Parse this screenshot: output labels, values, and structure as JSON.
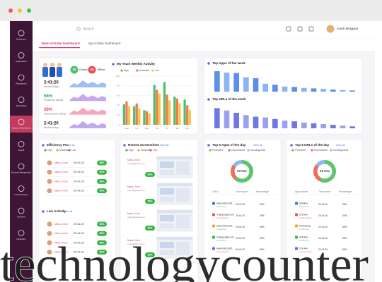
{
  "sidebar": {
    "items": [
      "Dashboard",
      "Organization",
      "Recruitment",
      "Onboarding",
      "Employee Monitoring",
      "Payroll",
      "Expense Management",
      "Leave Manager",
      "Workflow",
      "Integration"
    ]
  },
  "header": {
    "search": "Search",
    "user_name": "Anish Bhagwat"
  },
  "tabs": [
    "Team Activity Dashboard",
    "My Activity Dashboard"
  ],
  "team_overview": {
    "online": {
      "count": 28,
      "label": "Online"
    },
    "offline": {
      "count": 15,
      "label": "Offline"
    },
    "stats": [
      {
        "value": "2:41:20",
        "label": "Worked today"
      },
      {
        "value": "56%",
        "label": "Productive activity"
      },
      {
        "value": "28%",
        "label": "Unproductive activity"
      },
      {
        "value": "2:41:20",
        "label": "Worked today"
      }
    ]
  },
  "chart_data": [
    {
      "type": "bar",
      "title": "My Team Weekly Activity",
      "categories": [
        "Mon",
        "Tue",
        "Wed",
        "Thu",
        "Fri",
        "Sat",
        "Sun"
      ],
      "series": [
        {
          "name": "High",
          "color": "#4cbf6b",
          "values": [
            42,
            38,
            30,
            82,
            88,
            58,
            52
          ]
        },
        {
          "name": "Moderate",
          "color": "#f07a4a",
          "values": [
            48,
            44,
            28,
            72,
            62,
            54,
            40
          ]
        },
        {
          "name": "Low",
          "color": "#f5c542",
          "values": [
            38,
            34,
            24,
            64,
            50,
            44,
            30
          ]
        }
      ],
      "ylim": [
        0,
        100
      ],
      "yticks": [
        0,
        20,
        40,
        60,
        80,
        100
      ],
      "grid": true
    },
    {
      "type": "bar",
      "title": "Top Apps of the week",
      "categories": [
        null,
        null,
        null,
        null,
        null,
        null,
        null,
        null,
        null,
        null,
        null,
        null,
        null,
        null,
        null
      ],
      "values": [
        88,
        82,
        80,
        62,
        58,
        34,
        30,
        22,
        20,
        16,
        14,
        12,
        9,
        7,
        5
      ],
      "colors": [
        "#5b8fe8",
        "#8ab4f2",
        "#5b8fe8",
        "#8ab4f2",
        "#5b8fe8",
        "#8ab4f2",
        "#5b8fe8",
        "#8ab4f2",
        "#5b8fe8",
        "#8ab4f2",
        "#5b8fe8",
        "#8ab4f2",
        "#5b8fe8",
        "#8ab4f2",
        "#5b8fe8"
      ],
      "ylim": [
        0,
        100
      ]
    },
    {
      "type": "bar",
      "title": "Top URLs of the week",
      "categories": [
        null,
        null,
        null,
        null,
        null,
        null,
        null,
        null,
        null,
        null,
        null,
        null,
        null,
        null,
        null
      ],
      "values": [
        52,
        46,
        40,
        34,
        30,
        28,
        24,
        20,
        18,
        15,
        13,
        11,
        9,
        7,
        5
      ],
      "colors": [
        "#6f78e0",
        "#9aa2ee",
        "#6f78e0",
        "#9aa2ee",
        "#6f78e0",
        "#9aa2ee",
        "#6f78e0",
        "#9aa2ee",
        "#6f78e0",
        "#9aa2ee",
        "#6f78e0",
        "#9aa2ee",
        "#6f78e0",
        "#9aa2ee",
        "#6f78e0"
      ],
      "ylim": [
        0,
        60
      ]
    },
    {
      "type": "pie",
      "title": "Top 5 Apps of the day",
      "view_all": "View all",
      "center_label": "23 Hrs",
      "categories": [
        "Productive",
        "Unproductive",
        "Uncategorized"
      ],
      "values": [
        62,
        23,
        15
      ],
      "colors": [
        "#5cc46a",
        "#ef6b5b",
        "#8fb6f2"
      ]
    },
    {
      "type": "pie",
      "title": "Top 5 URLs of the day",
      "view_all": "View all",
      "center_label": "23 Hrs",
      "categories": [
        "Productive",
        "Unproductive",
        "Uncategorized"
      ],
      "values": [
        58,
        27,
        15
      ],
      "colors": [
        "#5cc46a",
        "#ef6b5b",
        "#8fb6f2"
      ]
    }
  ],
  "efficiency": {
    "title": "Efficiency Pro",
    "view_all": "View all",
    "legend": [
      {
        "label": "High",
        "color": "#39b54a"
      },
      {
        "label": "Moderate",
        "color": "#f5a623"
      },
      {
        "label": "Low",
        "color": "#e8505b"
      }
    ],
    "rows": [
      {
        "name": "Mano John",
        "time": "20:41:20",
        "score": "90%"
      },
      {
        "name": "Mano John",
        "time": "20:41:20",
        "score": "60%"
      },
      {
        "name": "Mano John",
        "time": "20:41:20",
        "score": "60%"
      },
      {
        "name": "Mano John",
        "time": "20:41:20",
        "score": "50%"
      }
    ]
  },
  "live_activity": {
    "title": "Live Activity",
    "view_all": "View all",
    "rows": [
      {
        "name": "Mano John",
        "time": "20:41:20",
        "score": "90%"
      },
      {
        "name": "Mano John",
        "time": "20:41:20",
        "score": "60%"
      },
      {
        "name": "Mano John",
        "time": "20:41:20",
        "score": "60%"
      },
      {
        "name": "Mano John",
        "time": "20:41:20",
        "score": "50%"
      }
    ]
  },
  "screenshots": {
    "title": "Recent Screenshots",
    "view_all": "View all",
    "legend": [
      {
        "label": "High",
        "color": "#39b54a"
      },
      {
        "label": "Moderate",
        "color": "#f5a623"
      },
      {
        "label": "Low",
        "color": "#e8505b"
      }
    ],
    "items": [
      {
        "name": "Mano John",
        "email": "mano@gmail.com",
        "score": "60%"
      },
      {
        "name": "Mano John",
        "email": "mano@gmail.com",
        "score": "60%"
      },
      {
        "name": "Mano John",
        "email": "mano@gmail.com",
        "score": "60%"
      },
      {
        "name": "Mano John",
        "email": "mano@gmail.com",
        "score": "60%"
      }
    ]
  },
  "top_apps_table": {
    "headers": [
      "URLs",
      "Time spent",
      "Percentage"
    ],
    "rows": [
      {
        "name": "www.microsoft...",
        "status": "Productive",
        "time": "20:41:20",
        "pct": "30%"
      },
      {
        "name": "mail.google.com",
        "status": "Unproductive",
        "time": "20:41:20",
        "pct": "30%"
      },
      {
        "name": "www.microsoft...",
        "status": "Productive",
        "time": "20:41:20",
        "pct": "50%"
      },
      {
        "name": "mail.google.com",
        "status": "Productive",
        "time": "20:41:20",
        "pct": "30%"
      },
      {
        "name": "www.microsoft...",
        "status": "Unproductive",
        "time": "20:41:20",
        "pct": "50%"
      }
    ]
  },
  "top_urls_table": {
    "headers": [
      "Apps name",
      "Time spent",
      "Percentage"
    ],
    "rows": [
      {
        "name": "Sublime",
        "status": "Productive",
        "time": "20:41:20",
        "pct": "30%"
      },
      {
        "name": "Chrome",
        "status": "Unproductive",
        "time": "20:41:20",
        "pct": "30%"
      },
      {
        "name": "Photoshop",
        "status": "Productive",
        "time": "20:41:20",
        "pct": "50%"
      },
      {
        "name": "Sublime",
        "status": "Productive",
        "time": "20:41:20",
        "pct": "30%"
      },
      {
        "name": "Chrome",
        "status": "Unproductive",
        "time": "20:41:20",
        "pct": "50%"
      }
    ]
  },
  "watermark": "technologycounter"
}
